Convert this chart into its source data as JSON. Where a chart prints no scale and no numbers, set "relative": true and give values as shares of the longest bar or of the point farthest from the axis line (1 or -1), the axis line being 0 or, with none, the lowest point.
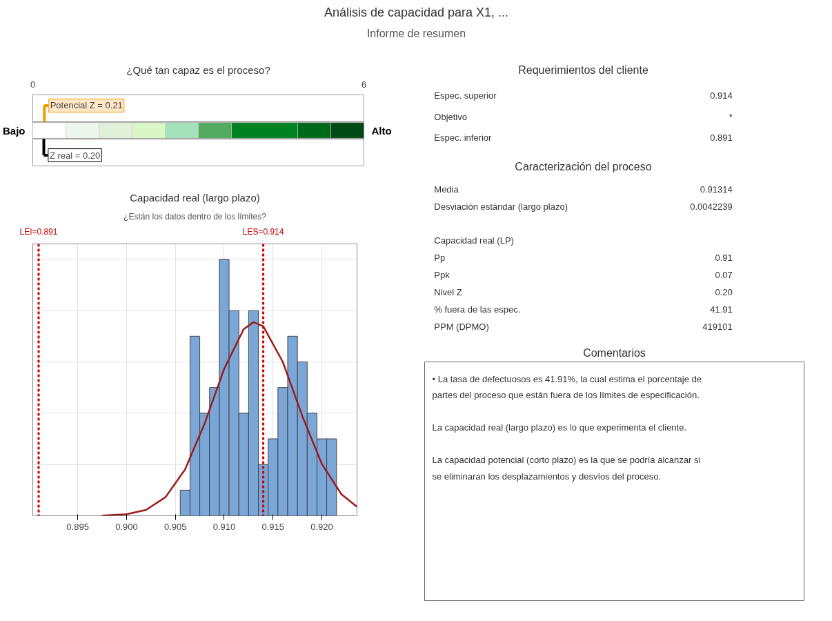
{
  "chart_data": [
    {
      "type": "other",
      "title": "Análisis de capacidad para X1, ...",
      "subtitle": "Informe de resumen"
    },
    {
      "type": "bar",
      "orientation": "horizontal",
      "stacked": true,
      "title": "¿Qué tan capaz es el proceso?",
      "xlim": [
        0,
        6
      ],
      "xticks": [
        0,
        6
      ],
      "grid": "x",
      "categories": [
        null
      ],
      "annotations": [
        "Bajo",
        "Alto"
      ],
      "series": [
        {
          "color": "#ffffff",
          "values": [
            0.6
          ]
        },
        {
          "color": "#eef7ee",
          "values": [
            0.6
          ]
        },
        {
          "color": "#e1f0d9",
          "values": [
            0.6
          ]
        },
        {
          "color": "#d9f7c4",
          "values": [
            0.6
          ]
        },
        {
          "color": "#a4e2bb",
          "values": [
            0.6
          ]
        },
        {
          "color": "#52ab5e",
          "values": [
            0.6
          ]
        },
        {
          "color": "#008222",
          "values": [
            1.2
          ]
        },
        {
          "color": "#006a1b",
          "values": [
            0.6
          ]
        },
        {
          "color": "#004a15",
          "values": [
            0.6
          ]
        }
      ],
      "ref_lines": [
        {
          "axis": "x",
          "value": 0.21,
          "label": "Potencial Z = 0.21",
          "color": "#f59b00"
        },
        {
          "axis": "x",
          "value": 0.2,
          "label": "Z real = 0.20",
          "color": "#000000"
        }
      ]
    },
    {
      "type": "histogram",
      "title": "Capacidad real (largo plazo)",
      "subtitle": "¿Están los datos dentro de los límites?",
      "relative": true,
      "xlim": [
        0.8904,
        0.9236
      ],
      "xticks": [
        {
          "value": 0.895,
          "label": "0.895"
        },
        {
          "value": 0.9,
          "label": "0.900"
        },
        {
          "value": 0.905,
          "label": "0.905"
        },
        {
          "value": 0.91,
          "label": "0.910"
        },
        {
          "value": 0.915,
          "label": "0.915"
        },
        {
          "value": 0.92,
          "label": "0.920"
        }
      ],
      "grid": true,
      "series": [
        {
          "type": "histogram",
          "color": "#7ba6d8",
          "bins": [
            0.9055,
            0.9065,
            0.9075,
            0.9085,
            0.9095,
            0.9105,
            0.9115,
            0.9125,
            0.9135,
            0.9145,
            0.9155,
            0.9165,
            0.9175,
            0.9185,
            0.9195,
            0.9205,
            0.9215
          ],
          "values": [
            0.1,
            0.7,
            0.4,
            0.5,
            1.0,
            0.8,
            0.4,
            0.8,
            0.2,
            0.3,
            0.5,
            0.7,
            0.6,
            0.4,
            0.3,
            0.3
          ]
        },
        {
          "type": "line",
          "color": "#9b1b1b",
          "x": [
            0.8975,
            0.9,
            0.902,
            0.904,
            0.906,
            0.908,
            0.91,
            0.912,
            0.913,
            0.914,
            0.916,
            0.918,
            0.92,
            0.922,
            0.9236
          ],
          "values": [
            0.001,
            0.006,
            0.023,
            0.073,
            0.181,
            0.36,
            0.573,
            0.728,
            0.755,
            0.739,
            0.6,
            0.389,
            0.202,
            0.084,
            0.035
          ]
        }
      ],
      "ref_lines": [
        {
          "axis": "x",
          "value": 0.891,
          "label": "LEI=0.891",
          "color": "#cc0000",
          "line_style": "dashed"
        },
        {
          "axis": "x",
          "value": 0.914,
          "label": "LES=0.914",
          "color": "#cc0000",
          "line_style": "dashed"
        }
      ]
    },
    {
      "type": "other",
      "title": "Requerimientos del cliente",
      "categories": [
        "Espec. superior",
        "Objetivo",
        "Espec. inferior"
      ],
      "value_labels": [
        "0.914",
        "*",
        "0.891"
      ]
    },
    {
      "type": "other",
      "title": "Caracterización del proceso",
      "categories": [
        "Media",
        "Desviación estándar (largo plazo)",
        null,
        "Capacidad real (LP)",
        "Pp",
        "Ppk",
        "Nivel Z",
        "% fuera de las espec.",
        "PPM (DPMO)"
      ],
      "value_labels": [
        "0.91314",
        "0.0042239",
        null,
        null,
        "0.91",
        "0.07",
        "0.20",
        "41.91",
        "419101"
      ]
    },
    {
      "type": "other",
      "title": "Comentarios",
      "annotations": [
        "•  La tasa de defectuosos es 41.91%, la cual estima el porcentaje de partes del proceso que están fuera de los límites de especificación.",
        "La capacidad real (largo plazo) es lo que experimenta el cliente.",
        "La capacidad potencial (corto plazo) es la que se podría alcanzar si se eliminaran los desplazamientos y desvíos del proceso."
      ]
    }
  ]
}
